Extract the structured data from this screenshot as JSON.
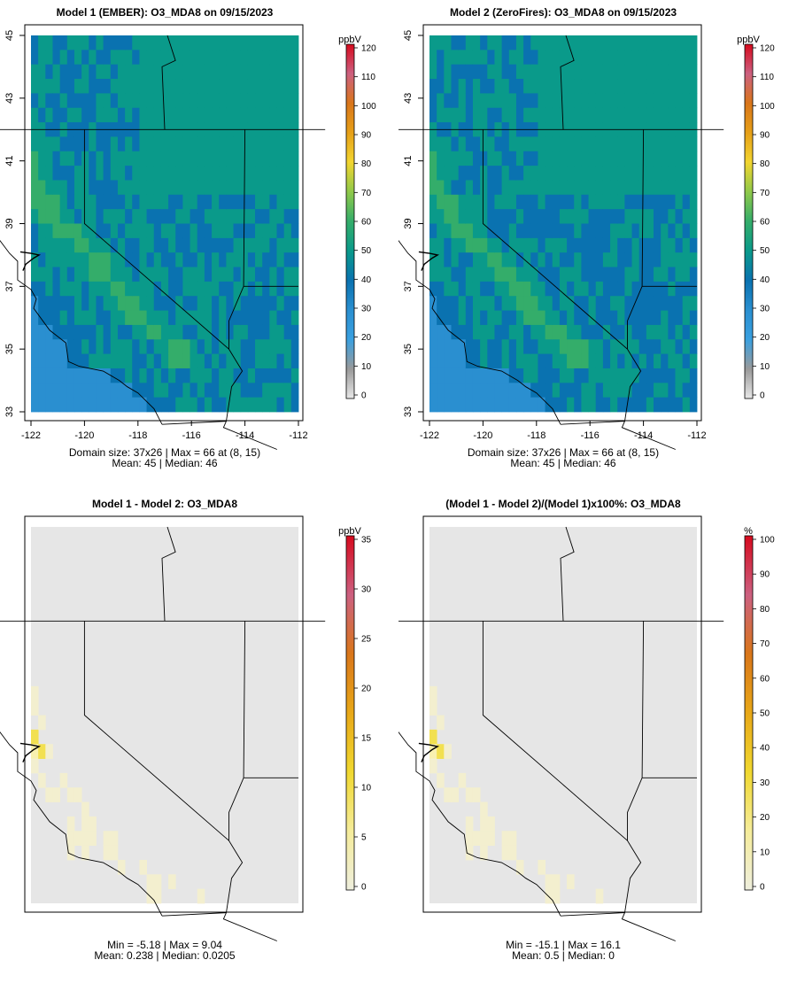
{
  "panels": [
    {
      "title": "Model 1 (EMBER): O3_MDA8 on 09/15/2023",
      "stats_line1": "Domain size: 37x26 | Max = 66 at (8, 15)",
      "stats_line2": "Mean: 45 |  Median: 46",
      "unit": "ppbV",
      "colorbar_ticks": [
        "0",
        "10",
        "20",
        "30",
        "40",
        "50",
        "60",
        "70",
        "80",
        "90",
        "100",
        "110",
        "120"
      ],
      "show_axes": true,
      "kind": "conc"
    },
    {
      "title": "Model 2 (ZeroFires): O3_MDA8 on 09/15/2023",
      "stats_line1": "Domain size: 37x26 | Max = 66 at (8, 15)",
      "stats_line2": "Mean: 45 |  Median: 46",
      "unit": "ppbV",
      "colorbar_ticks": [
        "0",
        "10",
        "20",
        "30",
        "40",
        "50",
        "60",
        "70",
        "80",
        "90",
        "100",
        "110",
        "120"
      ],
      "show_axes": true,
      "kind": "conc"
    },
    {
      "title": "Model 1 - Model 2: O3_MDA8",
      "stats_line1": "Min = -5.18 | Max = 9.04",
      "stats_line2": "Mean: 0.238 |  Median: 0.0205",
      "unit": "ppbV",
      "colorbar_ticks": [
        "0",
        "5",
        "10",
        "15",
        "20",
        "25",
        "30",
        "35"
      ],
      "show_axes": false,
      "kind": "diff"
    },
    {
      "title": "(Model 1 - Model 2)/(Model 1)x100%: O3_MDA8",
      "stats_line1": "Min = -15.1 | Max = 16.1",
      "stats_line2": "Mean: 0.5 |  Median: 0",
      "unit": "%",
      "colorbar_ticks": [
        "0",
        "10",
        "20",
        "30",
        "40",
        "50",
        "60",
        "70",
        "80",
        "90",
        "100"
      ],
      "show_axes": false,
      "kind": "diff"
    }
  ],
  "axes": {
    "x_ticks": [
      "-122",
      "-120",
      "-118",
      "-116",
      "-114",
      "-112"
    ],
    "y_ticks": [
      "33",
      "35",
      "37",
      "39",
      "41",
      "43",
      "45"
    ]
  },
  "colors": {
    "conc_scale": [
      "#e8e8e8",
      "#9a9a9a",
      "#3aa0e0",
      "#2a8fd0",
      "#0a72b0",
      "#0a9a8a",
      "#34ad6a",
      "#8fc94a",
      "#f2d530",
      "#e6a018",
      "#d9761a",
      "#cc6080",
      "#d60a1e"
    ],
    "diff_scale": [
      "#eeeedd",
      "#f5ec9a",
      "#f0d830",
      "#e8a818",
      "#d9761a",
      "#cc6080",
      "#d60a1e"
    ],
    "land_grey": "#e6e6e6"
  }
}
